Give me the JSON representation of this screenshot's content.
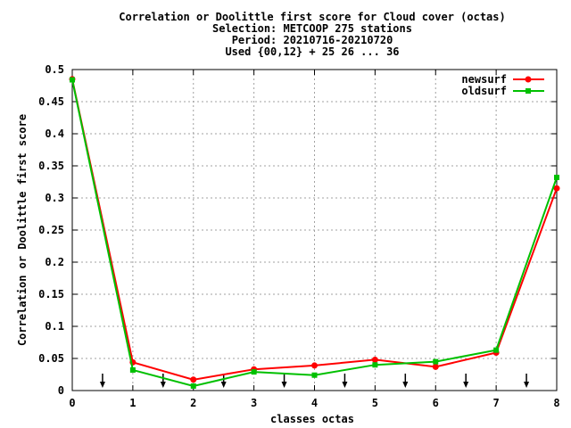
{
  "chart_data": {
    "type": "line",
    "title_lines": [
      "Correlation or Doolittle first score  for Cloud cover (octas)",
      "Selection: METCOOP    275 stations",
      "Period: 20210716-20210720",
      "Used {00,12} + 25 26 ... 36"
    ],
    "xlabel": "classes octas",
    "ylabel": "Correlation or Doolittle first score",
    "xlim": [
      0,
      8
    ],
    "ylim": [
      0,
      0.5
    ],
    "x_ticks": [
      0,
      1,
      2,
      3,
      4,
      5,
      6,
      7,
      8
    ],
    "x_tick_labels": [
      "0",
      "1",
      "2",
      "3",
      "4",
      "5",
      "6",
      "7",
      "8"
    ],
    "y_ticks": [
      0,
      0.05,
      0.1,
      0.15,
      0.2,
      0.25,
      0.3,
      0.35,
      0.4,
      0.45,
      0.5
    ],
    "y_tick_labels": [
      "0",
      "0.05",
      "0.1",
      "0.15",
      "0.2",
      "0.25",
      "0.3",
      "0.35",
      "0.4",
      "0.45",
      "0.5"
    ],
    "grid": true,
    "legend_position": "top-right",
    "x": [
      0,
      1,
      2,
      3,
      4,
      5,
      6,
      7,
      8
    ],
    "series": [
      {
        "name": "newsurf",
        "color": "#ff0000",
        "marker": "circle",
        "values": [
          0.485,
          0.044,
          0.017,
          0.033,
          0.039,
          0.048,
          0.037,
          0.059,
          0.315
        ]
      },
      {
        "name": "oldsurf",
        "color": "#00c000",
        "marker": "square",
        "values": [
          0.484,
          0.032,
          0.007,
          0.029,
          0.024,
          0.04,
          0.045,
          0.063,
          0.332
        ]
      }
    ],
    "arrow_markers_x": [
      0.5,
      1.5,
      2.5,
      3.5,
      4.5,
      5.5,
      6.5,
      7.5
    ]
  }
}
